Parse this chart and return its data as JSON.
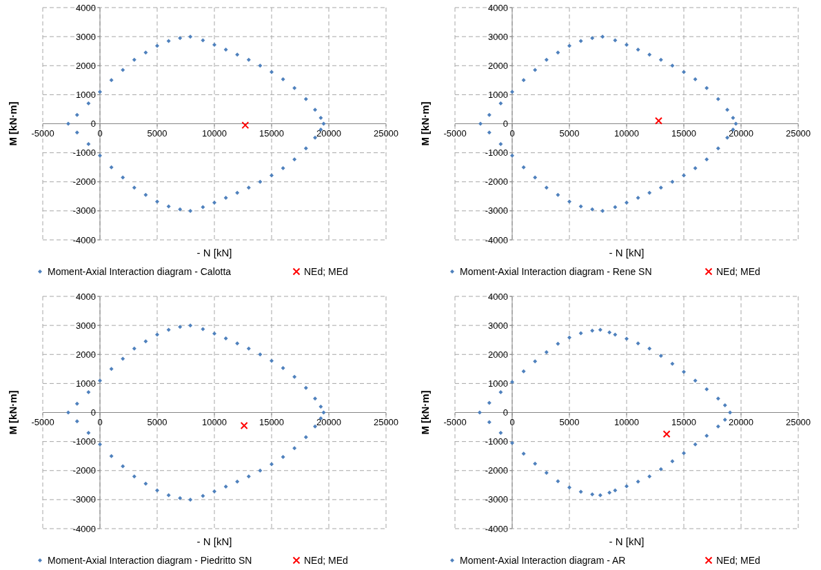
{
  "chart_data": [
    {
      "type": "scatter",
      "xlabel": "- N [kN]",
      "ylabel": "M [kN·m]",
      "xlim": [
        -5000,
        25000
      ],
      "ylim": [
        -4000,
        4000
      ],
      "xticks": [
        -5000,
        0,
        5000,
        10000,
        15000,
        20000,
        25000
      ],
      "yticks": [
        -4000,
        -3000,
        -2000,
        -1000,
        0,
        1000,
        2000,
        3000,
        4000
      ],
      "grid": true,
      "legend": "bottom",
      "series": [
        {
          "name": "Moment-Axial Interaction diagram - Calotta",
          "color": "#4f81bd",
          "marker": "diamond",
          "x": [
            -2770,
            -2000,
            -1000,
            0,
            1000,
            2000,
            3000,
            4000,
            5000,
            6000,
            7000,
            7900,
            9000,
            10000,
            11000,
            12000,
            13000,
            14000,
            15000,
            16000,
            17000,
            18000,
            18800,
            19300,
            19550,
            -2000,
            -1000,
            0,
            1000,
            2000,
            3000,
            4000,
            5000,
            6000,
            7000,
            7900,
            9000,
            10000,
            11000,
            12000,
            13000,
            14000,
            15000,
            16000,
            17000,
            18000,
            18800,
            19300
          ],
          "values": [
            0,
            300,
            700,
            1100,
            1500,
            1850,
            2200,
            2450,
            2680,
            2850,
            2950,
            3000,
            2870,
            2720,
            2550,
            2380,
            2200,
            2000,
            1780,
            1530,
            1230,
            850,
            480,
            200,
            0,
            -300,
            -700,
            -1100,
            -1500,
            -1850,
            -2200,
            -2450,
            -2680,
            -2850,
            -2950,
            -3000,
            -2870,
            -2720,
            -2550,
            -2380,
            -2200,
            -2000,
            -1780,
            -1530,
            -1230,
            -850,
            -480,
            -200
          ]
        },
        {
          "name": "NEd; MEd",
          "color": "#ff0000",
          "marker": "cross",
          "x": [
            12700
          ],
          "values": [
            -50
          ]
        }
      ]
    },
    {
      "type": "scatter",
      "xlabel": "- N [kN]",
      "ylabel": "M [kN·m]",
      "xlim": [
        -5000,
        25000
      ],
      "ylim": [
        -4000,
        4000
      ],
      "xticks": [
        -5000,
        0,
        5000,
        10000,
        15000,
        20000,
        25000
      ],
      "yticks": [
        -4000,
        -3000,
        -2000,
        -1000,
        0,
        1000,
        2000,
        3000,
        4000
      ],
      "grid": true,
      "legend": "bottom",
      "series": [
        {
          "name": "Moment-Axial Interaction diagram - Rene SN",
          "color": "#4f81bd",
          "marker": "diamond",
          "x": [
            -2770,
            -2000,
            -1000,
            0,
            1000,
            2000,
            3000,
            4000,
            5000,
            6000,
            7000,
            7900,
            9000,
            10000,
            11000,
            12000,
            13000,
            14000,
            15000,
            16000,
            17000,
            18000,
            18800,
            19300,
            19550,
            -2000,
            -1000,
            0,
            1000,
            2000,
            3000,
            4000,
            5000,
            6000,
            7000,
            7900,
            9000,
            10000,
            11000,
            12000,
            13000,
            14000,
            15000,
            16000,
            17000,
            18000,
            18800,
            19300
          ],
          "values": [
            0,
            300,
            700,
            1100,
            1500,
            1850,
            2200,
            2450,
            2680,
            2850,
            2950,
            3000,
            2870,
            2720,
            2550,
            2380,
            2200,
            2000,
            1780,
            1530,
            1230,
            850,
            480,
            200,
            0,
            -300,
            -700,
            -1100,
            -1500,
            -1850,
            -2200,
            -2450,
            -2680,
            -2850,
            -2950,
            -3000,
            -2870,
            -2720,
            -2550,
            -2380,
            -2200,
            -2000,
            -1780,
            -1530,
            -1230,
            -850,
            -480,
            -200
          ]
        },
        {
          "name": "NEd; MEd",
          "color": "#ff0000",
          "marker": "cross",
          "x": [
            12800
          ],
          "values": [
            100
          ]
        }
      ]
    },
    {
      "type": "scatter",
      "xlabel": "- N [kN]",
      "ylabel": "M [kN·m]",
      "xlim": [
        -5000,
        25000
      ],
      "ylim": [
        -4000,
        4000
      ],
      "xticks": [
        -5000,
        0,
        5000,
        10000,
        15000,
        20000,
        25000
      ],
      "yticks": [
        -4000,
        -3000,
        -2000,
        -1000,
        0,
        1000,
        2000,
        3000,
        4000
      ],
      "grid": true,
      "legend": "bottom",
      "series": [
        {
          "name": "Moment-Axial Interaction diagram - Piedritto SN",
          "color": "#4f81bd",
          "marker": "diamond",
          "x": [
            -2770,
            -2000,
            -1000,
            0,
            1000,
            2000,
            3000,
            4000,
            5000,
            6000,
            7000,
            7900,
            9000,
            10000,
            11000,
            12000,
            13000,
            14000,
            15000,
            16000,
            17000,
            18000,
            18800,
            19300,
            19550,
            -2000,
            -1000,
            0,
            1000,
            2000,
            3000,
            4000,
            5000,
            6000,
            7000,
            7900,
            9000,
            10000,
            11000,
            12000,
            13000,
            14000,
            15000,
            16000,
            17000,
            18000,
            18800,
            19300
          ],
          "values": [
            0,
            300,
            700,
            1100,
            1500,
            1850,
            2200,
            2450,
            2680,
            2850,
            2950,
            3000,
            2870,
            2720,
            2550,
            2380,
            2200,
            2000,
            1780,
            1530,
            1230,
            850,
            480,
            200,
            0,
            -300,
            -700,
            -1100,
            -1500,
            -1850,
            -2200,
            -2450,
            -2680,
            -2850,
            -2950,
            -3000,
            -2870,
            -2720,
            -2550,
            -2380,
            -2200,
            -2000,
            -1780,
            -1530,
            -1230,
            -850,
            -480,
            -200
          ]
        },
        {
          "name": "NEd; MEd",
          "color": "#ff0000",
          "marker": "cross",
          "x": [
            12600
          ],
          "values": [
            -450
          ]
        }
      ]
    },
    {
      "type": "scatter",
      "xlabel": "- N [kN]",
      "ylabel": "M [kN·m]",
      "xlim": [
        -5000,
        25000
      ],
      "ylim": [
        -4000,
        4000
      ],
      "xticks": [
        -5000,
        0,
        5000,
        10000,
        15000,
        20000,
        25000
      ],
      "yticks": [
        -4000,
        -3000,
        -2000,
        -1000,
        0,
        1000,
        2000,
        3000,
        4000
      ],
      "grid": true,
      "legend": "bottom",
      "series": [
        {
          "name": "Moment-Axial Interaction diagram - AR",
          "color": "#4f81bd",
          "marker": "diamond",
          "x": [
            -2840,
            -2000,
            -1000,
            0,
            1000,
            2000,
            3000,
            4000,
            5000,
            6000,
            7000,
            7700,
            8500,
            9000,
            10000,
            11000,
            12000,
            13000,
            14000,
            15000,
            16000,
            17000,
            18000,
            18600,
            19040,
            -2000,
            -1000,
            0,
            1000,
            2000,
            3000,
            4000,
            5000,
            6000,
            7000,
            7700,
            8500,
            9000,
            10000,
            11000,
            12000,
            13000,
            14000,
            15000,
            16000,
            17000,
            18000,
            18600
          ],
          "values": [
            0,
            330,
            700,
            1050,
            1420,
            1760,
            2080,
            2370,
            2580,
            2730,
            2820,
            2850,
            2760,
            2680,
            2540,
            2380,
            2200,
            1950,
            1680,
            1400,
            1100,
            800,
            480,
            250,
            0,
            -330,
            -700,
            -1050,
            -1420,
            -1760,
            -2080,
            -2370,
            -2580,
            -2730,
            -2820,
            -2850,
            -2760,
            -2680,
            -2540,
            -2380,
            -2200,
            -1950,
            -1680,
            -1400,
            -1100,
            -800,
            -480,
            -250
          ]
        },
        {
          "name": "NEd; MEd",
          "color": "#ff0000",
          "marker": "cross",
          "x": [
            13500
          ],
          "values": [
            -740
          ]
        }
      ]
    }
  ]
}
